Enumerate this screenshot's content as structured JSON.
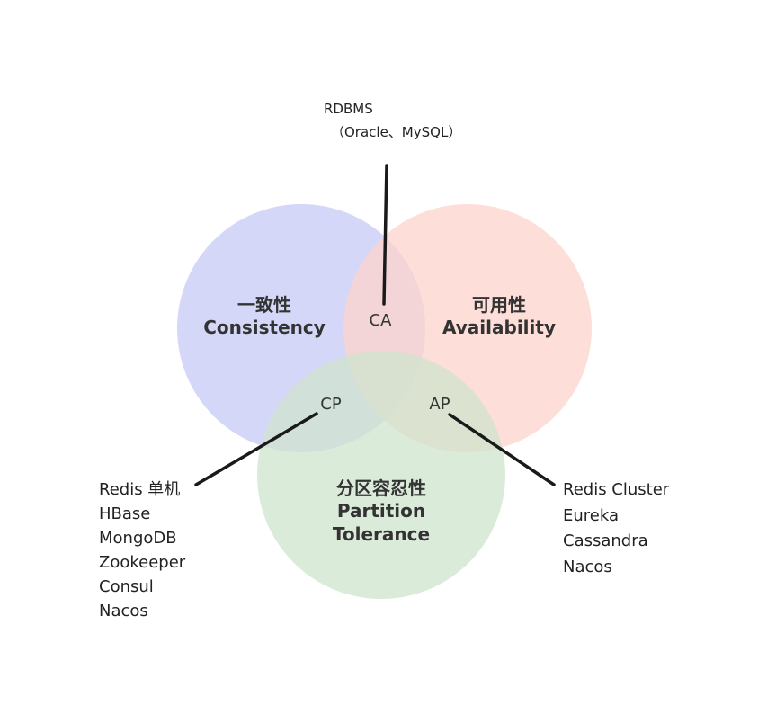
{
  "colors": {
    "consistency": "#c7c9f7",
    "availability": "#fcd3cb",
    "partition": "#cfe4cd",
    "connector": "#1a1a1a",
    "text": "#333333"
  },
  "circles": {
    "consistency": {
      "line1": "一致性",
      "line2": "Consistency"
    },
    "availability": {
      "line1": "可用性",
      "line2": "Availability"
    },
    "partition": {
      "line1": "分区容忍性",
      "line2": "Partition",
      "line3": "Tolerance"
    }
  },
  "regions": {
    "ca": "CA",
    "cp": "CP",
    "ap": "AP"
  },
  "ca_systems": [
    "RDBMS",
    "（Oracle、MySQL）"
  ],
  "cp_systems": [
    "Redis 单机",
    "HBase",
    "MongoDB",
    "Zookeeper",
    "Consul",
    "Nacos"
  ],
  "ap_systems": [
    "Redis Cluster",
    "Eureka",
    "Cassandra",
    "Nacos"
  ]
}
